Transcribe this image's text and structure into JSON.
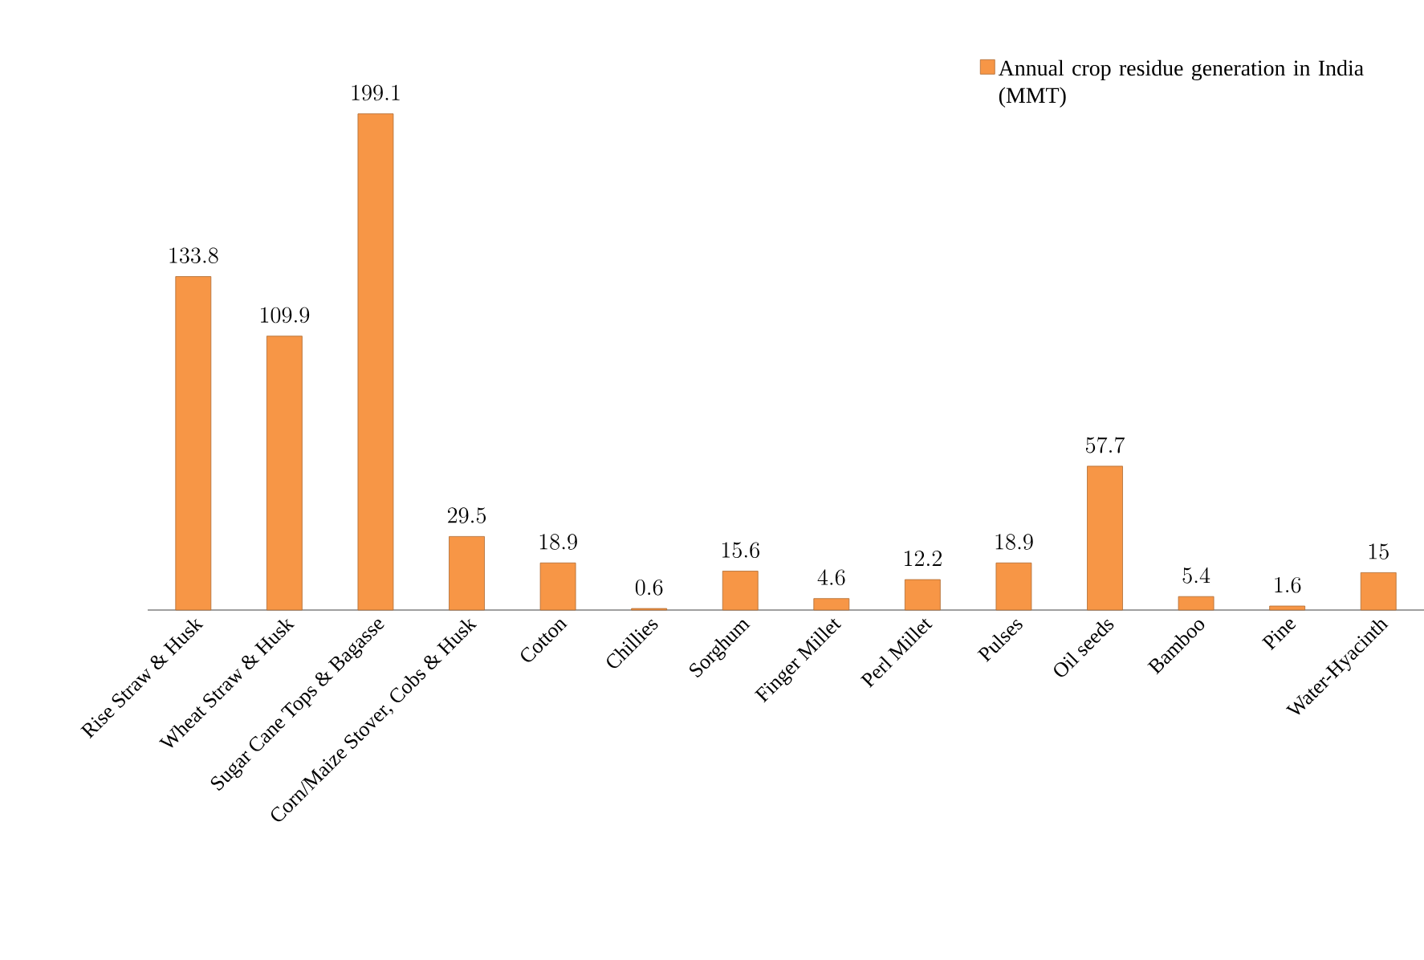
{
  "chart_data": {
    "type": "bar",
    "categories": [
      "Rise Straw & Husk",
      "Wheat Straw & Husk",
      "Sugar Cane Tops & Bagasse",
      "Corn/Maize Stover, Cobs & Husk",
      "Cotton",
      "Chillies",
      "Sorghum",
      "Finger Millet",
      "Perl Millet",
      "Pulses",
      "Oil seeds",
      "Bamboo",
      "Pine",
      "Water-Hyacinth"
    ],
    "series": [
      {
        "name": "Annual crop residue generation in India (MMT)",
        "color": "#f79646",
        "values": [
          133.8,
          109.9,
          199.1,
          29.5,
          18.9,
          0.6,
          15.6,
          4.6,
          12.2,
          18.9,
          57.7,
          5.4,
          1.6,
          15
        ]
      }
    ],
    "data_labels": true,
    "legend": "top right"
  }
}
